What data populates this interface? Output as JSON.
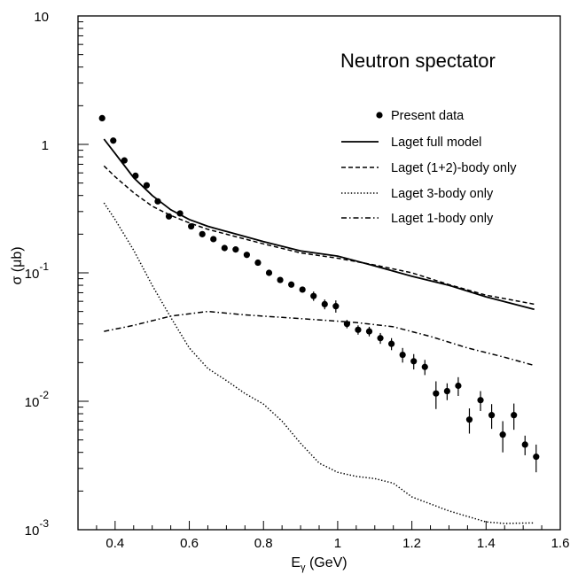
{
  "chart_data": {
    "type": "scatter",
    "title": "Neutron spectator",
    "xlabel_main": "E",
    "xlabel_sub": "γ",
    "xlabel_unit": " (GeV)",
    "ylabel": "σ (μb)",
    "xlim": [
      0.3,
      1.6
    ],
    "ylim": [
      0.001,
      10
    ],
    "yscale": "log",
    "x_ticks": [
      {
        "value": 0.4,
        "label": "0.4"
      },
      {
        "value": 0.6,
        "label": "0.6"
      },
      {
        "value": 0.8,
        "label": "0.8"
      },
      {
        "value": 1.0,
        "label": "1"
      },
      {
        "value": 1.2,
        "label": "1.2"
      },
      {
        "value": 1.4,
        "label": "1.4"
      },
      {
        "value": 1.6,
        "label": "1.6"
      }
    ],
    "y_ticks": [
      {
        "value": 10,
        "base": "10",
        "exp": ""
      },
      {
        "value": 1,
        "base": "1",
        "exp": ""
      },
      {
        "value": 0.1,
        "base": "10",
        "exp": "-1"
      },
      {
        "value": 0.01,
        "base": "10",
        "exp": "-2"
      },
      {
        "value": 0.001,
        "base": "10",
        "exp": "-3"
      }
    ],
    "legend": [
      {
        "label": "Present data",
        "style": "marker"
      },
      {
        "label": "Laget full model",
        "style": "solid"
      },
      {
        "label": "Laget (1+2)-body only",
        "style": "dashed"
      },
      {
        "label": "Laget 3-body only",
        "style": "dotted"
      },
      {
        "label": "Laget 1-body only",
        "style": "dashdot"
      }
    ],
    "series": [
      {
        "name": "Present data",
        "kind": "points",
        "x": [
          0.365,
          0.395,
          0.425,
          0.455,
          0.485,
          0.515,
          0.545,
          0.575,
          0.605,
          0.635,
          0.665,
          0.695,
          0.725,
          0.755,
          0.785,
          0.815,
          0.845,
          0.875,
          0.905,
          0.935,
          0.965,
          0.995,
          1.025,
          1.055,
          1.085,
          1.115,
          1.145,
          1.175,
          1.205,
          1.235,
          1.265,
          1.295,
          1.325,
          1.355,
          1.385,
          1.415,
          1.445,
          1.475,
          1.505,
          1.535
        ],
        "y": [
          1.6,
          1.07,
          0.75,
          0.57,
          0.48,
          0.36,
          0.275,
          0.29,
          0.23,
          0.2,
          0.183,
          0.156,
          0.152,
          0.138,
          0.12,
          0.1,
          0.088,
          0.081,
          0.074,
          0.066,
          0.057,
          0.055,
          0.04,
          0.036,
          0.035,
          0.031,
          0.028,
          0.023,
          0.0205,
          0.0185,
          0.0115,
          0.012,
          0.0132,
          0.0072,
          0.0102,
          0.0078,
          0.0055,
          0.0078,
          0.0046,
          0.0037
        ],
        "y_err": [
          0,
          0,
          0,
          0,
          0,
          0,
          0,
          0,
          0,
          0,
          0,
          0,
          0,
          0,
          0,
          0,
          0,
          0,
          0,
          0.0055,
          0.005,
          0.006,
          0.003,
          0.003,
          0.003,
          0.003,
          0.003,
          0.003,
          0.0028,
          0.0025,
          0.0028,
          0.0018,
          0.0022,
          0.0016,
          0.0018,
          0.0017,
          0.0015,
          0.0018,
          0.0008,
          0.0009
        ]
      },
      {
        "name": "Laget full model",
        "kind": "line",
        "style": "solid",
        "x": [
          0.37,
          0.4,
          0.45,
          0.5,
          0.55,
          0.6,
          0.65,
          0.7,
          0.8,
          0.9,
          1.0,
          1.1,
          1.2,
          1.3,
          1.4,
          1.53
        ],
        "y": [
          1.1,
          0.85,
          0.55,
          0.4,
          0.31,
          0.26,
          0.23,
          0.21,
          0.175,
          0.148,
          0.135,
          0.113,
          0.094,
          0.08,
          0.065,
          0.052
        ]
      },
      {
        "name": "Laget (1+2)-body only",
        "kind": "line",
        "style": "dashed",
        "x": [
          0.37,
          0.4,
          0.45,
          0.5,
          0.55,
          0.6,
          0.65,
          0.7,
          0.8,
          0.9,
          1.0,
          1.1,
          1.2,
          1.3,
          1.4,
          1.53
        ],
        "y": [
          0.68,
          0.56,
          0.42,
          0.33,
          0.28,
          0.245,
          0.218,
          0.2,
          0.168,
          0.143,
          0.13,
          0.115,
          0.1,
          0.081,
          0.067,
          0.057
        ]
      },
      {
        "name": "Laget 3-body only",
        "kind": "line",
        "style": "dotted",
        "x": [
          0.37,
          0.4,
          0.45,
          0.5,
          0.55,
          0.6,
          0.65,
          0.7,
          0.75,
          0.8,
          0.85,
          0.9,
          0.95,
          1.0,
          1.05,
          1.1,
          1.15,
          1.2,
          1.3,
          1.4,
          1.45,
          1.53
        ],
        "y": [
          0.35,
          0.26,
          0.15,
          0.08,
          0.045,
          0.026,
          0.018,
          0.0145,
          0.0115,
          0.0095,
          0.007,
          0.0047,
          0.0033,
          0.0028,
          0.0026,
          0.0025,
          0.0023,
          0.0018,
          0.0014,
          0.00115,
          0.00112,
          0.00113
        ]
      },
      {
        "name": "Laget 1-body only",
        "kind": "line",
        "style": "dashdot",
        "x": [
          0.37,
          0.45,
          0.55,
          0.65,
          0.75,
          0.85,
          0.95,
          1.05,
          1.15,
          1.25,
          1.35,
          1.45,
          1.53
        ],
        "y": [
          0.035,
          0.039,
          0.046,
          0.05,
          0.047,
          0.045,
          0.043,
          0.041,
          0.038,
          0.032,
          0.026,
          0.022,
          0.019
        ]
      }
    ]
  }
}
